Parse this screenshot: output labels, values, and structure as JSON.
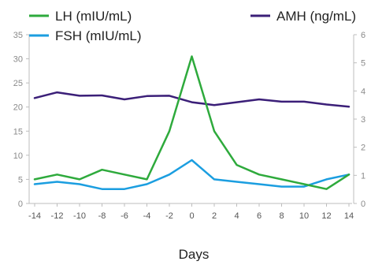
{
  "chart_data": {
    "type": "line",
    "xlabel": "Days",
    "x": [
      -14,
      -12,
      -10,
      -8,
      -6,
      -4,
      -2,
      0,
      2,
      4,
      6,
      8,
      10,
      12,
      14
    ],
    "x_ticks": [
      "-14",
      "-12",
      "-10",
      "-8",
      "-6",
      "-4",
      "-2",
      "0",
      "2",
      "4",
      "6",
      "8",
      "10",
      "12",
      "14"
    ],
    "xlim": [
      -14,
      14
    ],
    "y_left": {
      "ylim": [
        0,
        35
      ],
      "ticks": [
        "0",
        "5",
        "10",
        "15",
        "20",
        "25",
        "30",
        "35"
      ]
    },
    "y_right": {
      "ylim": [
        0,
        6
      ],
      "ticks": [
        "0",
        "1",
        "2",
        "3",
        "4",
        "5",
        "6"
      ]
    },
    "grid": false,
    "legend_position": "top",
    "series": [
      {
        "name": "LH (mIU/mL)",
        "axis": "left",
        "color": "#2eaa3c",
        "values": [
          5,
          6,
          5,
          7,
          6,
          5,
          15,
          30.5,
          15,
          8,
          6,
          5,
          4,
          3,
          6
        ]
      },
      {
        "name": "FSH (mIU/mL)",
        "axis": "left",
        "color": "#1b9ee0",
        "values": [
          4,
          4.5,
          4,
          3,
          3,
          4,
          6,
          9,
          5,
          4.5,
          4,
          3.5,
          3.5,
          5,
          6
        ]
      },
      {
        "name": "AMH (ng/mL)",
        "axis": "right",
        "color": "#3b1f78",
        "values": [
          3.75,
          3.95,
          3.83,
          3.84,
          3.7,
          3.82,
          3.83,
          3.6,
          3.5,
          3.6,
          3.7,
          3.62,
          3.62,
          3.52,
          3.44
        ]
      }
    ]
  }
}
